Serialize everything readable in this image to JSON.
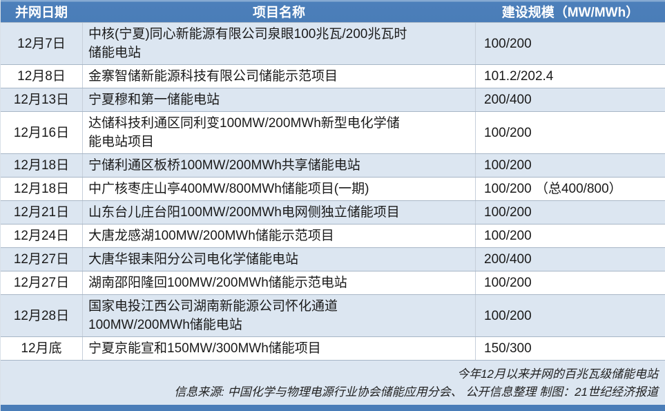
{
  "chart_data": {
    "type": "table",
    "title": "今年12月以来并网的百兆瓦级储能电站",
    "source_note": "信息来源: 中国化学与物理电源行业协会储能应用分会、 公开信息整理 制图：21世纪经济报道",
    "columns": [
      "并网日期",
      "项目名称",
      "建设规模（MW/MWh）"
    ],
    "rows": [
      {
        "date": "12月7日",
        "project": "中核(宁夏)同心新能源有限公司泉眼100兆瓦/200兆瓦时\n储能电站",
        "scale": "100/200"
      },
      {
        "date": "12月8日",
        "project": "金寨智储新能源科技有限公司储能示范项目",
        "scale": "101.2/202.4"
      },
      {
        "date": "12月13日",
        "project": "宁夏穆和第一储能电站",
        "scale": "200/400"
      },
      {
        "date": "12月16日",
        "project": "达储科技利通区同利变100MW/200MWh新型电化学储\n能电站项目",
        "scale": "100/200"
      },
      {
        "date": "12月18日",
        "project": "宁储利通区板桥100MW/200MWh共享储能电站",
        "scale": "100/200"
      },
      {
        "date": "12月18日",
        "project": "中广核枣庄山亭400MW/800MWh储能项目(一期)",
        "scale": "100/200 （总400/800）"
      },
      {
        "date": "12月21日",
        "project": "山东台儿庄台阳100MW/200MWh电网侧独立储能项目",
        "scale": "100/200"
      },
      {
        "date": "12月24日",
        "project": "大唐龙感湖100MW/200MWh储能示范项目",
        "scale": "100/200"
      },
      {
        "date": "12月27日",
        "project": "大唐华银耒阳分公司电化学储能电站",
        "scale": "200/400"
      },
      {
        "date": "12月27日",
        "project": "湖南邵阳隆回100MW/200MWh储能示范电站",
        "scale": "100/200"
      },
      {
        "date": "12月28日",
        "project": "国家电投江西公司湖南新能源公司怀化通道\n100MW/200MWh储能电站",
        "scale": "100/200"
      },
      {
        "date": "12月底",
        "project": "宁夏京能宣和150MW/300MWh储能项目",
        "scale": "150/300"
      }
    ]
  },
  "colors": {
    "header_bg": "#4A7DB8",
    "header_text": "#FFFFFF",
    "row_alt_bg": "#DCE6F1",
    "row_bg": "#FFFFFF",
    "footer_bg": "#DCE6F1",
    "bottom_bar": "#4A7DB8",
    "grid_line": "#A7B6C6"
  }
}
